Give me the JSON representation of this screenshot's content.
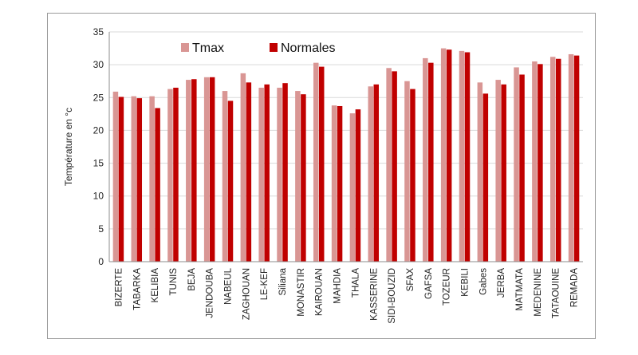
{
  "chart_data": {
    "type": "bar",
    "ylabel": "Température en °c",
    "ylim": [
      0,
      35
    ],
    "yticks": [
      "0",
      "5",
      "10",
      "15",
      "20",
      "25",
      "30",
      "35"
    ],
    "grid": true,
    "legend_position": "top-left",
    "categories": [
      "BIZERTE",
      "TABARKA",
      "KELIBIA",
      "TUNIS",
      "BEJA",
      "JENDOUBA",
      "NABEUL",
      "ZAGHOUAN",
      "LE-KEF",
      "Siliana",
      "MONASTIR",
      "KAIROUAN",
      "MAHDIA",
      "THALA",
      "KASSERINE",
      "SIDI-BOUZID",
      "SFAX",
      "GAFSA",
      "TOZEUR",
      "KEBILI",
      "Gabes",
      "JERBA",
      "MATMATA",
      "MEDENINE",
      "TATAOUINE",
      "REMADA"
    ],
    "series": [
      {
        "name": "Tmax",
        "color": "#d99694",
        "values": [
          25.9,
          25.2,
          25.2,
          26.3,
          27.7,
          28.1,
          26.0,
          28.7,
          26.5,
          26.5,
          26.0,
          30.3,
          23.8,
          22.6,
          26.7,
          29.5,
          27.5,
          31.0,
          32.5,
          32.1,
          27.3,
          27.7,
          29.6,
          30.5,
          31.2,
          31.6
        ]
      },
      {
        "name": "Normales",
        "color": "#c00000",
        "values": [
          25.1,
          24.9,
          23.4,
          26.5,
          27.8,
          28.1,
          24.5,
          27.3,
          27.0,
          27.2,
          25.5,
          29.7,
          23.7,
          23.2,
          27.0,
          29.0,
          26.3,
          30.3,
          32.3,
          31.9,
          25.6,
          27.0,
          28.5,
          30.1,
          30.9,
          31.4
        ]
      }
    ]
  }
}
